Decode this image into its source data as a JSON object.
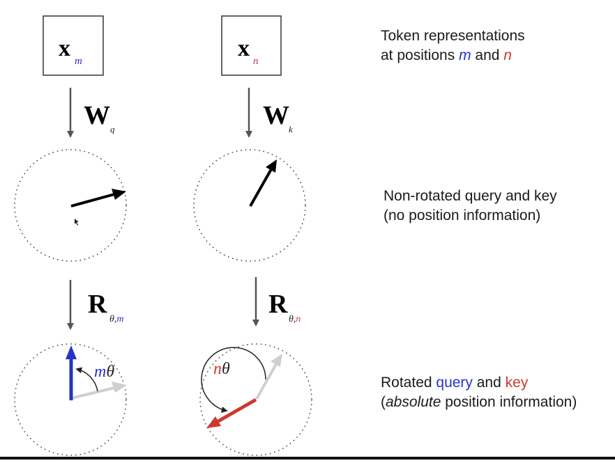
{
  "tokens": {
    "m": {
      "symbol": "x",
      "subscript": "m"
    },
    "n": {
      "symbol": "x",
      "subscript": "n"
    }
  },
  "transforms": {
    "query": {
      "symbol": "W",
      "subscript": "q"
    },
    "key": {
      "symbol": "W",
      "subscript": "k"
    }
  },
  "rotations": {
    "m": {
      "symbol": "R",
      "sub_theta": "θ,",
      "sub_pos": "m"
    },
    "n": {
      "symbol": "R",
      "sub_theta": "θ,",
      "sub_pos": "n"
    }
  },
  "angle_labels": {
    "m": {
      "pos": "m",
      "theta": "θ"
    },
    "n": {
      "pos": "n",
      "theta": "θ"
    }
  },
  "captions": {
    "tokens": {
      "line1": "Token representations",
      "line2_pre": "at positions ",
      "m": "m",
      "and": " and ",
      "n": "n"
    },
    "nonrotated": {
      "line1": "Non-rotated query and key",
      "line2": "(no position information)"
    },
    "rotated": {
      "pre": "Rotated ",
      "query": "query",
      "and": " and ",
      "key": "key",
      "open": "(",
      "absolute": "absolute",
      "rest": " position information)"
    }
  },
  "colors": {
    "query_blue": "#2633c9",
    "key_red": "#cc3a2e",
    "original_gray": "#cfcfcf",
    "arrow_gray": "#555555",
    "vector_black": "#000000"
  }
}
